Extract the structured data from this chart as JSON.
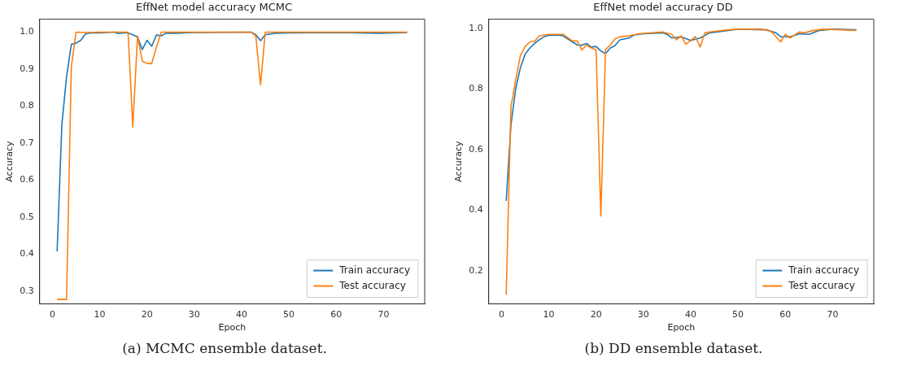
{
  "chart_data": [
    {
      "type": "line",
      "title": "EffNet model accuracy MCMC",
      "xlabel": "Epoch",
      "ylabel": "Accuracy",
      "xlim": [
        -2.7,
        78.7
      ],
      "xticks": [
        0,
        10,
        20,
        30,
        40,
        50,
        60,
        70
      ],
      "ylim": [
        0.265,
        1.035
      ],
      "yticks": [
        0.3,
        0.4,
        0.5,
        0.6,
        0.7,
        0.8,
        0.9,
        {
          "value": 1,
          "label": "1.0"
        }
      ],
      "grid": false,
      "legend": "bottom right",
      "marker": "none",
      "line_style": "solid",
      "annotations": [
        "(a) MCMC ensemble dataset."
      ],
      "series": [
        {
          "name": "Train accuracy",
          "color": "#1f77b4",
          "x": [
            1,
            2,
            3,
            4,
            5,
            6,
            7,
            8,
            10,
            13,
            14,
            15,
            16,
            17,
            18,
            19,
            20,
            21,
            22,
            23,
            24,
            26,
            30,
            42,
            43,
            44,
            45,
            47,
            50,
            60,
            69,
            75
          ],
          "values": [
            0.407,
            0.75,
            0.88,
            0.967,
            0.97,
            0.978,
            0.995,
            0.998,
            0.998,
            1.0,
            0.996,
            0.998,
            0.998,
            0.993,
            0.987,
            0.953,
            0.978,
            0.962,
            0.992,
            0.99,
            0.997,
            0.997,
            0.999,
            1.0,
            0.993,
            0.977,
            0.993,
            0.997,
            0.998,
            0.999,
            0.997,
            0.999
          ]
        },
        {
          "name": "Test accuracy",
          "color": "#ff7f0e",
          "x": [
            1,
            2,
            3,
            4,
            5,
            7,
            10,
            16,
            17,
            18,
            19,
            20,
            21,
            22,
            23,
            30,
            42,
            43,
            44,
            45,
            75
          ],
          "values": [
            0.277,
            0.277,
            0.277,
            0.905,
            1.0,
            0.999,
            1.0,
            1.0,
            0.743,
            0.99,
            0.922,
            0.915,
            0.915,
            0.96,
            1.0,
            1.0,
            1.0,
            0.99,
            0.857,
            1.0,
            1.0
          ]
        }
      ]
    },
    {
      "type": "line",
      "title": "EffNet model accuracy DD",
      "xlabel": "Epoch",
      "ylabel": "Accuracy",
      "xlim": [
        -2.7,
        78.7
      ],
      "xticks": [
        0,
        10,
        20,
        30,
        40,
        50,
        60,
        70
      ],
      "ylim": [
        0.09,
        1.03
      ],
      "yticks": [
        0.2,
        0.4,
        0.6,
        0.8,
        {
          "value": 1,
          "label": "1.0"
        }
      ],
      "grid": false,
      "legend": "bottom right",
      "marker": "none",
      "line_style": "solid",
      "annotations": [
        "(b) DD ensemble dataset."
      ],
      "series": [
        {
          "name": "Train accuracy",
          "color": "#1f77b4",
          "x": [
            1,
            2,
            3,
            4,
            5,
            6,
            7,
            8,
            9,
            10,
            12,
            13,
            15,
            16,
            17,
            18,
            19,
            20,
            21,
            22,
            23,
            24,
            25,
            27,
            28,
            30,
            34,
            35,
            36,
            38,
            40,
            42,
            44,
            48,
            50,
            56,
            58,
            59,
            61,
            63,
            65,
            67,
            70,
            75
          ],
          "values": [
            0.43,
            0.68,
            0.8,
            0.87,
            0.915,
            0.935,
            0.95,
            0.962,
            0.972,
            0.977,
            0.978,
            0.975,
            0.955,
            0.945,
            0.944,
            0.95,
            0.938,
            0.94,
            0.925,
            0.917,
            0.935,
            0.943,
            0.962,
            0.968,
            0.978,
            0.982,
            0.985,
            0.98,
            0.968,
            0.972,
            0.96,
            0.968,
            0.985,
            0.993,
            0.997,
            0.995,
            0.985,
            0.972,
            0.972,
            0.982,
            0.98,
            0.992,
            0.997,
            0.995
          ]
        },
        {
          "name": "Test accuracy",
          "color": "#ff7f0e",
          "x": [
            1,
            2,
            3,
            4,
            5,
            6,
            7,
            8,
            10,
            13,
            15,
            16,
            17,
            18,
            19,
            20,
            21,
            22,
            23,
            24,
            25,
            27,
            29,
            34,
            36,
            37,
            38,
            39,
            41,
            42,
            43,
            45,
            48,
            50,
            55,
            57,
            59,
            60,
            61,
            63,
            64,
            66,
            68,
            75
          ],
          "values": [
            0.12,
            0.74,
            0.83,
            0.91,
            0.94,
            0.955,
            0.957,
            0.975,
            0.98,
            0.98,
            0.958,
            0.958,
            0.928,
            0.945,
            0.935,
            0.928,
            0.38,
            0.93,
            0.945,
            0.965,
            0.972,
            0.975,
            0.982,
            0.988,
            0.98,
            0.962,
            0.975,
            0.947,
            0.973,
            0.938,
            0.985,
            0.99,
            0.995,
            0.997,
            0.997,
            0.99,
            0.955,
            0.98,
            0.968,
            0.988,
            0.985,
            0.993,
            0.997,
            0.993
          ]
        }
      ]
    }
  ]
}
